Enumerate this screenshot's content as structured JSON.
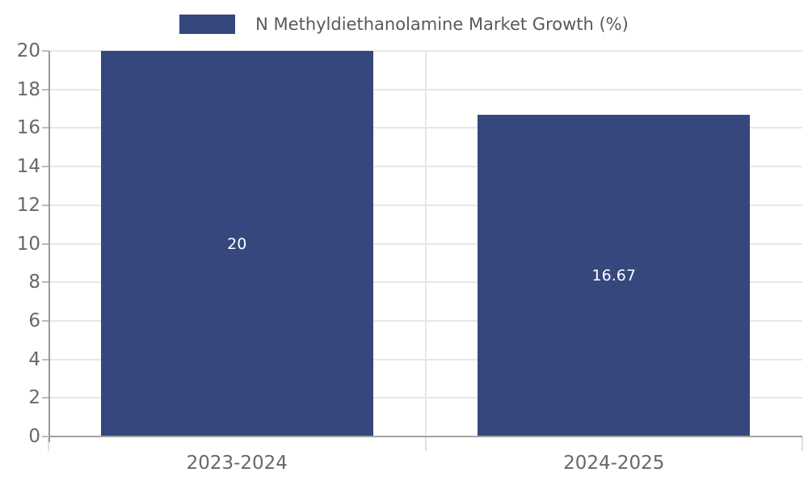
{
  "legend": {
    "label": "N Methyldiethanolamine Market Growth (%)"
  },
  "chart_data": {
    "type": "bar",
    "title": "",
    "categories": [
      "2023-2024",
      "2024-2025"
    ],
    "values": [
      20,
      16.67
    ],
    "bar_labels": [
      "20",
      "16.67"
    ],
    "series_name": "N Methyldiethanolamine Market Growth (%)",
    "xlabel": "",
    "ylabel": "",
    "ylim": [
      0,
      20
    ],
    "yticks": [
      0,
      2,
      4,
      6,
      8,
      10,
      12,
      14,
      16,
      18,
      20
    ],
    "grid": "both",
    "legend_position": "top-center",
    "bar_width_fraction": 0.722
  },
  "colors": {
    "bar": "#35477d",
    "bar_label": "#ffffff",
    "grid": "#e7e7e7",
    "tick_label": "#686868",
    "legend_text": "#595959"
  }
}
